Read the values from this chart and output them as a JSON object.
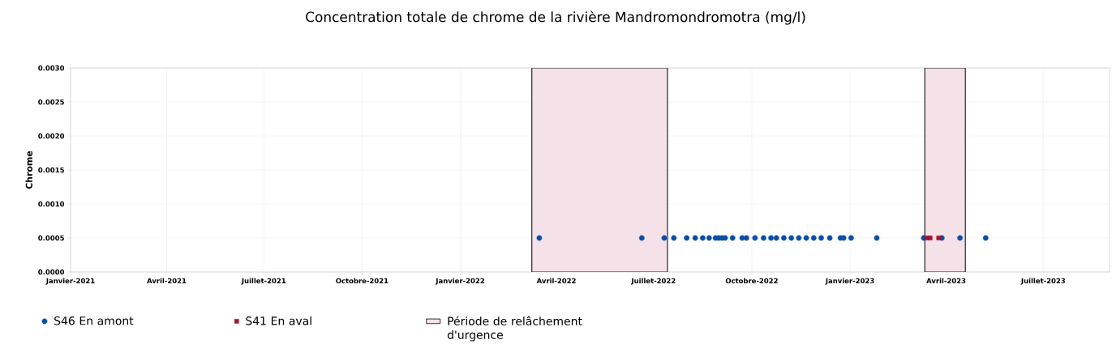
{
  "chart_data": {
    "type": "scatter",
    "title": "Concentration totale de chrome de la rivière Mandromondromotra (mg/l)",
    "ylabel": "Chrome",
    "xlim": [
      "2021-01-01",
      "2023-09-01"
    ],
    "ylim": [
      0,
      0.003
    ],
    "xticks": [
      {
        "value": "2021-01-01",
        "label": "Janvier-2021"
      },
      {
        "value": "2021-04-01",
        "label": "Avril-2021"
      },
      {
        "value": "2021-07-01",
        "label": "Juillet-2021"
      },
      {
        "value": "2021-10-01",
        "label": "Octobre-2021"
      },
      {
        "value": "2022-01-01",
        "label": "Janvier-2022"
      },
      {
        "value": "2022-04-01",
        "label": "Avril-2022"
      },
      {
        "value": "2022-07-01",
        "label": "Juillet-2022"
      },
      {
        "value": "2022-10-01",
        "label": "Octobre-2022"
      },
      {
        "value": "2023-01-01",
        "label": "Janvier-2023"
      },
      {
        "value": "2023-04-01",
        "label": "Avril-2023"
      },
      {
        "value": "2023-07-01",
        "label": "Juillet-2023"
      }
    ],
    "yticks": [
      {
        "value": 0,
        "label": "0.0000"
      },
      {
        "value": 0.0005,
        "label": "0.0005"
      },
      {
        "value": 0.001,
        "label": "0.0010"
      },
      {
        "value": 0.0015,
        "label": "0.0015"
      },
      {
        "value": 0.002,
        "label": "0.0020"
      },
      {
        "value": 0.0025,
        "label": "0.0025"
      },
      {
        "value": 0.003,
        "label": "0.0030"
      }
    ],
    "grid": true,
    "legend": "bottom left",
    "series": [
      {
        "name": "S46 En amont",
        "color": "#0a4fa6",
        "marker": "circle",
        "x": [
          "2022-03-16",
          "2022-06-20",
          "2022-07-11",
          "2022-07-20",
          "2022-08-01",
          "2022-08-09",
          "2022-08-16",
          "2022-08-22",
          "2022-08-28",
          "2022-08-31",
          "2022-09-03",
          "2022-09-06",
          "2022-09-13",
          "2022-09-22",
          "2022-09-26",
          "2022-10-04",
          "2022-10-12",
          "2022-10-19",
          "2022-10-24",
          "2022-10-31",
          "2022-11-07",
          "2022-11-14",
          "2022-11-21",
          "2022-11-28",
          "2022-12-05",
          "2022-12-13",
          "2022-12-23",
          "2022-12-26",
          "2023-01-02",
          "2023-01-26",
          "2023-03-11",
          "2023-03-28",
          "2023-04-14",
          "2023-05-08"
        ],
        "values": [
          0.0005,
          0.0005,
          0.0005,
          0.0005,
          0.0005,
          0.0005,
          0.0005,
          0.0005,
          0.0005,
          0.0005,
          0.0005,
          0.0005,
          0.0005,
          0.0005,
          0.0005,
          0.0005,
          0.0005,
          0.0005,
          0.0005,
          0.0005,
          0.0005,
          0.0005,
          0.0005,
          0.0005,
          0.0005,
          0.0005,
          0.0005,
          0.0005,
          0.0005,
          0.0005,
          0.0005,
          0.0005,
          0.0005,
          0.0005
        ]
      },
      {
        "name": "S41 En aval",
        "color": "#a8102e",
        "marker": "square",
        "x": [
          "2023-03-14",
          "2023-03-17",
          "2023-03-25"
        ],
        "values": [
          0.0005,
          0.0005,
          0.0005
        ]
      }
    ],
    "bands": [
      {
        "axis": "x",
        "from": "2022-03-09",
        "to": "2022-07-14",
        "label": "Période de relâchement d'urgence",
        "color": "#f5e1e8"
      },
      {
        "axis": "x",
        "from": "2023-03-12",
        "to": "2023-04-19",
        "color": "#f5e1e8"
      }
    ]
  }
}
